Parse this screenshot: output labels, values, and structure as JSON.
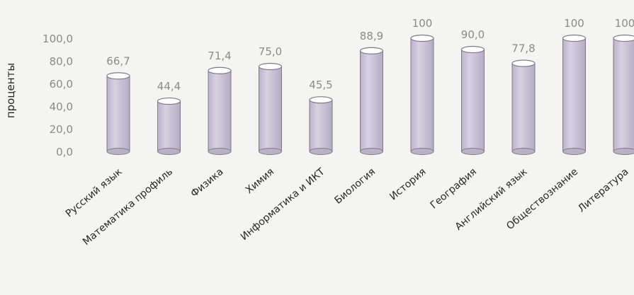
{
  "chart_data": {
    "type": "bar",
    "ylabel": "проценты",
    "ylim": [
      0,
      100
    ],
    "yticks": [
      "0,0",
      "20,0",
      "40,0",
      "60,0",
      "80,0",
      "100,0"
    ],
    "grid": false,
    "bar_style": "cylinder",
    "categories": [
      "Русский язык",
      "Математика профиль",
      "Физика",
      "Химия",
      "Информатика и ИКТ",
      "Биология",
      "История",
      "География",
      "Английский язык",
      "Обществознание",
      "Литература"
    ],
    "values": [
      66.7,
      44.4,
      71.4,
      75.0,
      45.5,
      88.9,
      100,
      90.0,
      77.8,
      100,
      100
    ],
    "value_labels": [
      "66,7",
      "44,4",
      "71,4",
      "75,0",
      "45,5",
      "88,9",
      "100",
      "90,0",
      "77,8",
      "100",
      "100"
    ],
    "colors": {
      "bar_fill": "#c9c4d8",
      "bar_stroke": "#7f7a86",
      "top_fill": "#ffffff",
      "text": "#8a8a8a",
      "label_dark": "#262626"
    }
  }
}
